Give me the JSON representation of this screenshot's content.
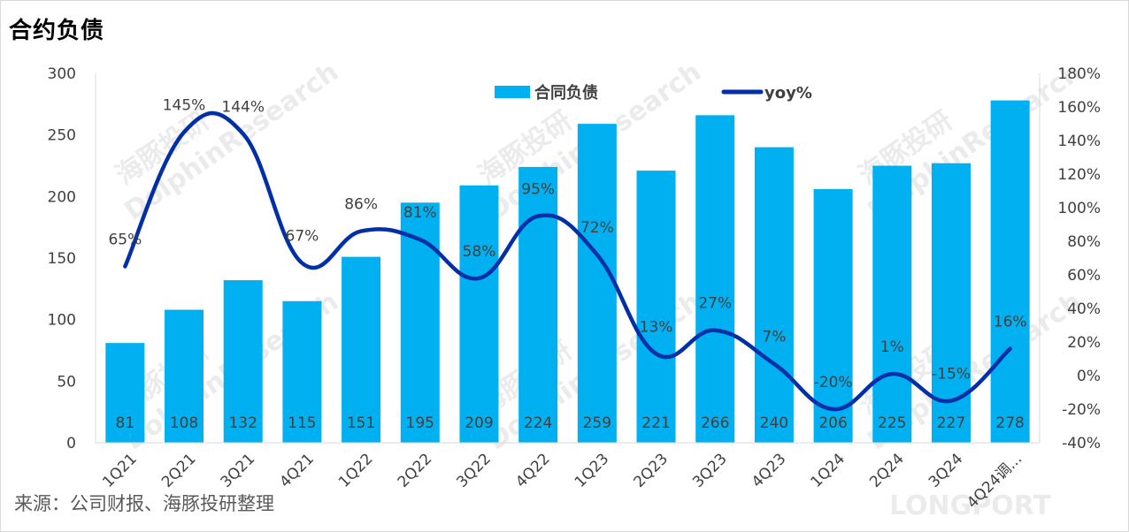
{
  "title": "合约负债",
  "source": "来源：公司财报、海豚投研整理",
  "chart_data": {
    "type": "bar",
    "categories": [
      "1Q21",
      "2Q21",
      "3Q21",
      "4Q21",
      "1Q22",
      "2Q22",
      "3Q22",
      "4Q22",
      "1Q23",
      "2Q23",
      "3Q23",
      "4Q23",
      "1Q24",
      "2Q24",
      "3Q24",
      "4Q24调..."
    ],
    "series": [
      {
        "name": "合同负债",
        "type": "bar",
        "axis": "left",
        "color": "#00b0f0",
        "values": [
          81,
          108,
          132,
          115,
          151,
          195,
          209,
          224,
          259,
          221,
          266,
          240,
          206,
          225,
          227,
          278
        ]
      },
      {
        "name": "yoy%",
        "type": "line",
        "axis": "right",
        "color": "#002fa7",
        "values": [
          65,
          145,
          144,
          67,
          86,
          81,
          58,
          95,
          72,
          13,
          27,
          7,
          -20,
          1,
          -15,
          16
        ],
        "labels": [
          "65%",
          "145%",
          "144%",
          "67%",
          "86%",
          "81%",
          "58%",
          "95%",
          "72%",
          "13%",
          "27%",
          "7%",
          "-20%",
          "1%",
          "-15%",
          "16%"
        ]
      }
    ],
    "ylim_left": [
      0,
      300
    ],
    "yticks_left": [
      "0",
      "50",
      "100",
      "150",
      "200",
      "250",
      "300"
    ],
    "ylim_right": [
      -40,
      180
    ],
    "yticks_right": [
      "-40%",
      "-20%",
      "0%",
      "20%",
      "40%",
      "60%",
      "80%",
      "100%",
      "120%",
      "140%",
      "160%",
      "180%"
    ],
    "legend_position": "top-center",
    "grid": false
  },
  "watermark": {
    "text_cn": "海豚投研",
    "text_en": "DolphinResearch",
    "brand": "LONGPORT"
  }
}
